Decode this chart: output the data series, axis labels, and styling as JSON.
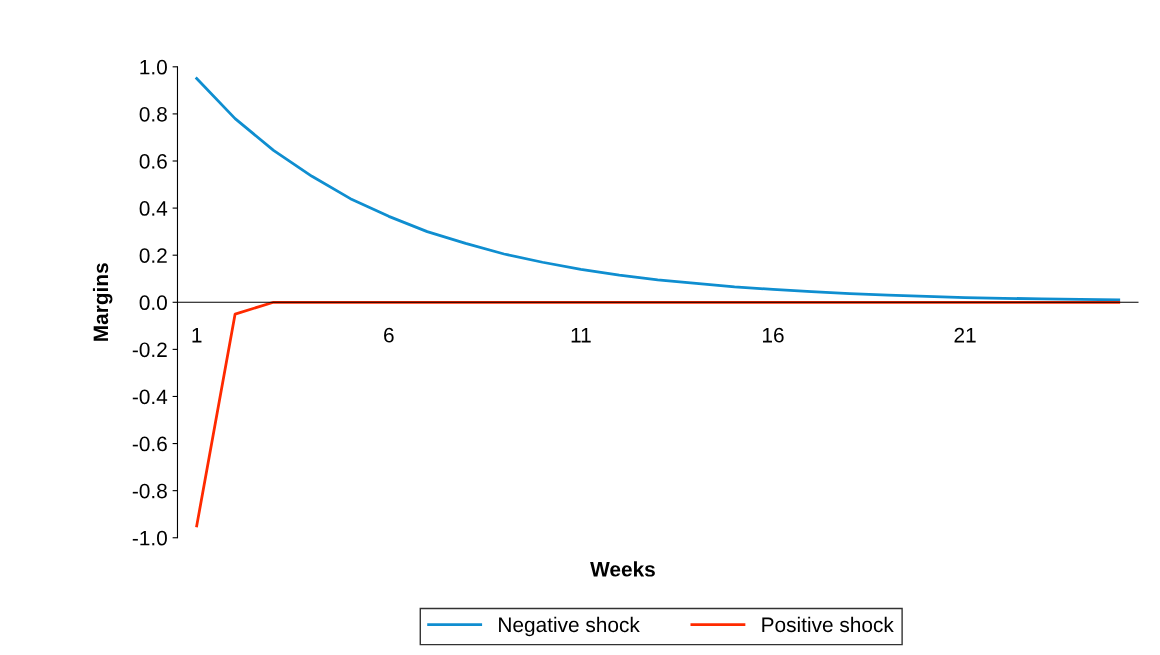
{
  "chart_data": {
    "type": "line",
    "xlabel": "Weeks",
    "ylabel": "Margins",
    "categories": [
      "1",
      null,
      null,
      null,
      null,
      "6",
      null,
      null,
      null,
      null,
      "11",
      null,
      null,
      null,
      null,
      "16",
      null,
      null,
      null,
      null,
      "21",
      null,
      null,
      null,
      null
    ],
    "series": [
      {
        "name": "Negative shock",
        "color": "#0f8ed0",
        "values": [
          0.95,
          0.78,
          0.645,
          0.535,
          0.44,
          0.365,
          0.3,
          0.25,
          0.205,
          0.17,
          0.14,
          0.115,
          0.095,
          0.08,
          0.065,
          0.055,
          0.045,
          0.037,
          0.03,
          0.025,
          0.02,
          0.017,
          0.014,
          0.012,
          0.01
        ]
      },
      {
        "name": "Positive shock",
        "color": "#ff2a00",
        "values": [
          -0.95,
          -0.05,
          0,
          0,
          0,
          0,
          0,
          0,
          0,
          0,
          0,
          0,
          0,
          0,
          0,
          0,
          0,
          0,
          0,
          0,
          0,
          0,
          0,
          0,
          0
        ]
      }
    ],
    "ylim": [
      -1.0,
      1.0
    ],
    "yticks": [
      {
        "value": -1.0,
        "label": "-1.0"
      },
      {
        "value": -0.8,
        "label": "-0.8"
      },
      {
        "value": -0.6,
        "label": "-0.6"
      },
      {
        "value": -0.4,
        "label": "-0.4"
      },
      {
        "value": -0.2,
        "label": "-0.2"
      },
      {
        "value": 0.0,
        "label": "0.0"
      },
      {
        "value": 0.2,
        "label": "0.2"
      },
      {
        "value": 0.4,
        "label": "0.4"
      },
      {
        "value": 0.6,
        "label": "0.6"
      },
      {
        "value": 0.8,
        "label": "0.8"
      },
      {
        "value": 1.0,
        "label": "1.0"
      }
    ],
    "grid": false,
    "legend": "bottom",
    "marker": "none",
    "line_style": "solid"
  }
}
